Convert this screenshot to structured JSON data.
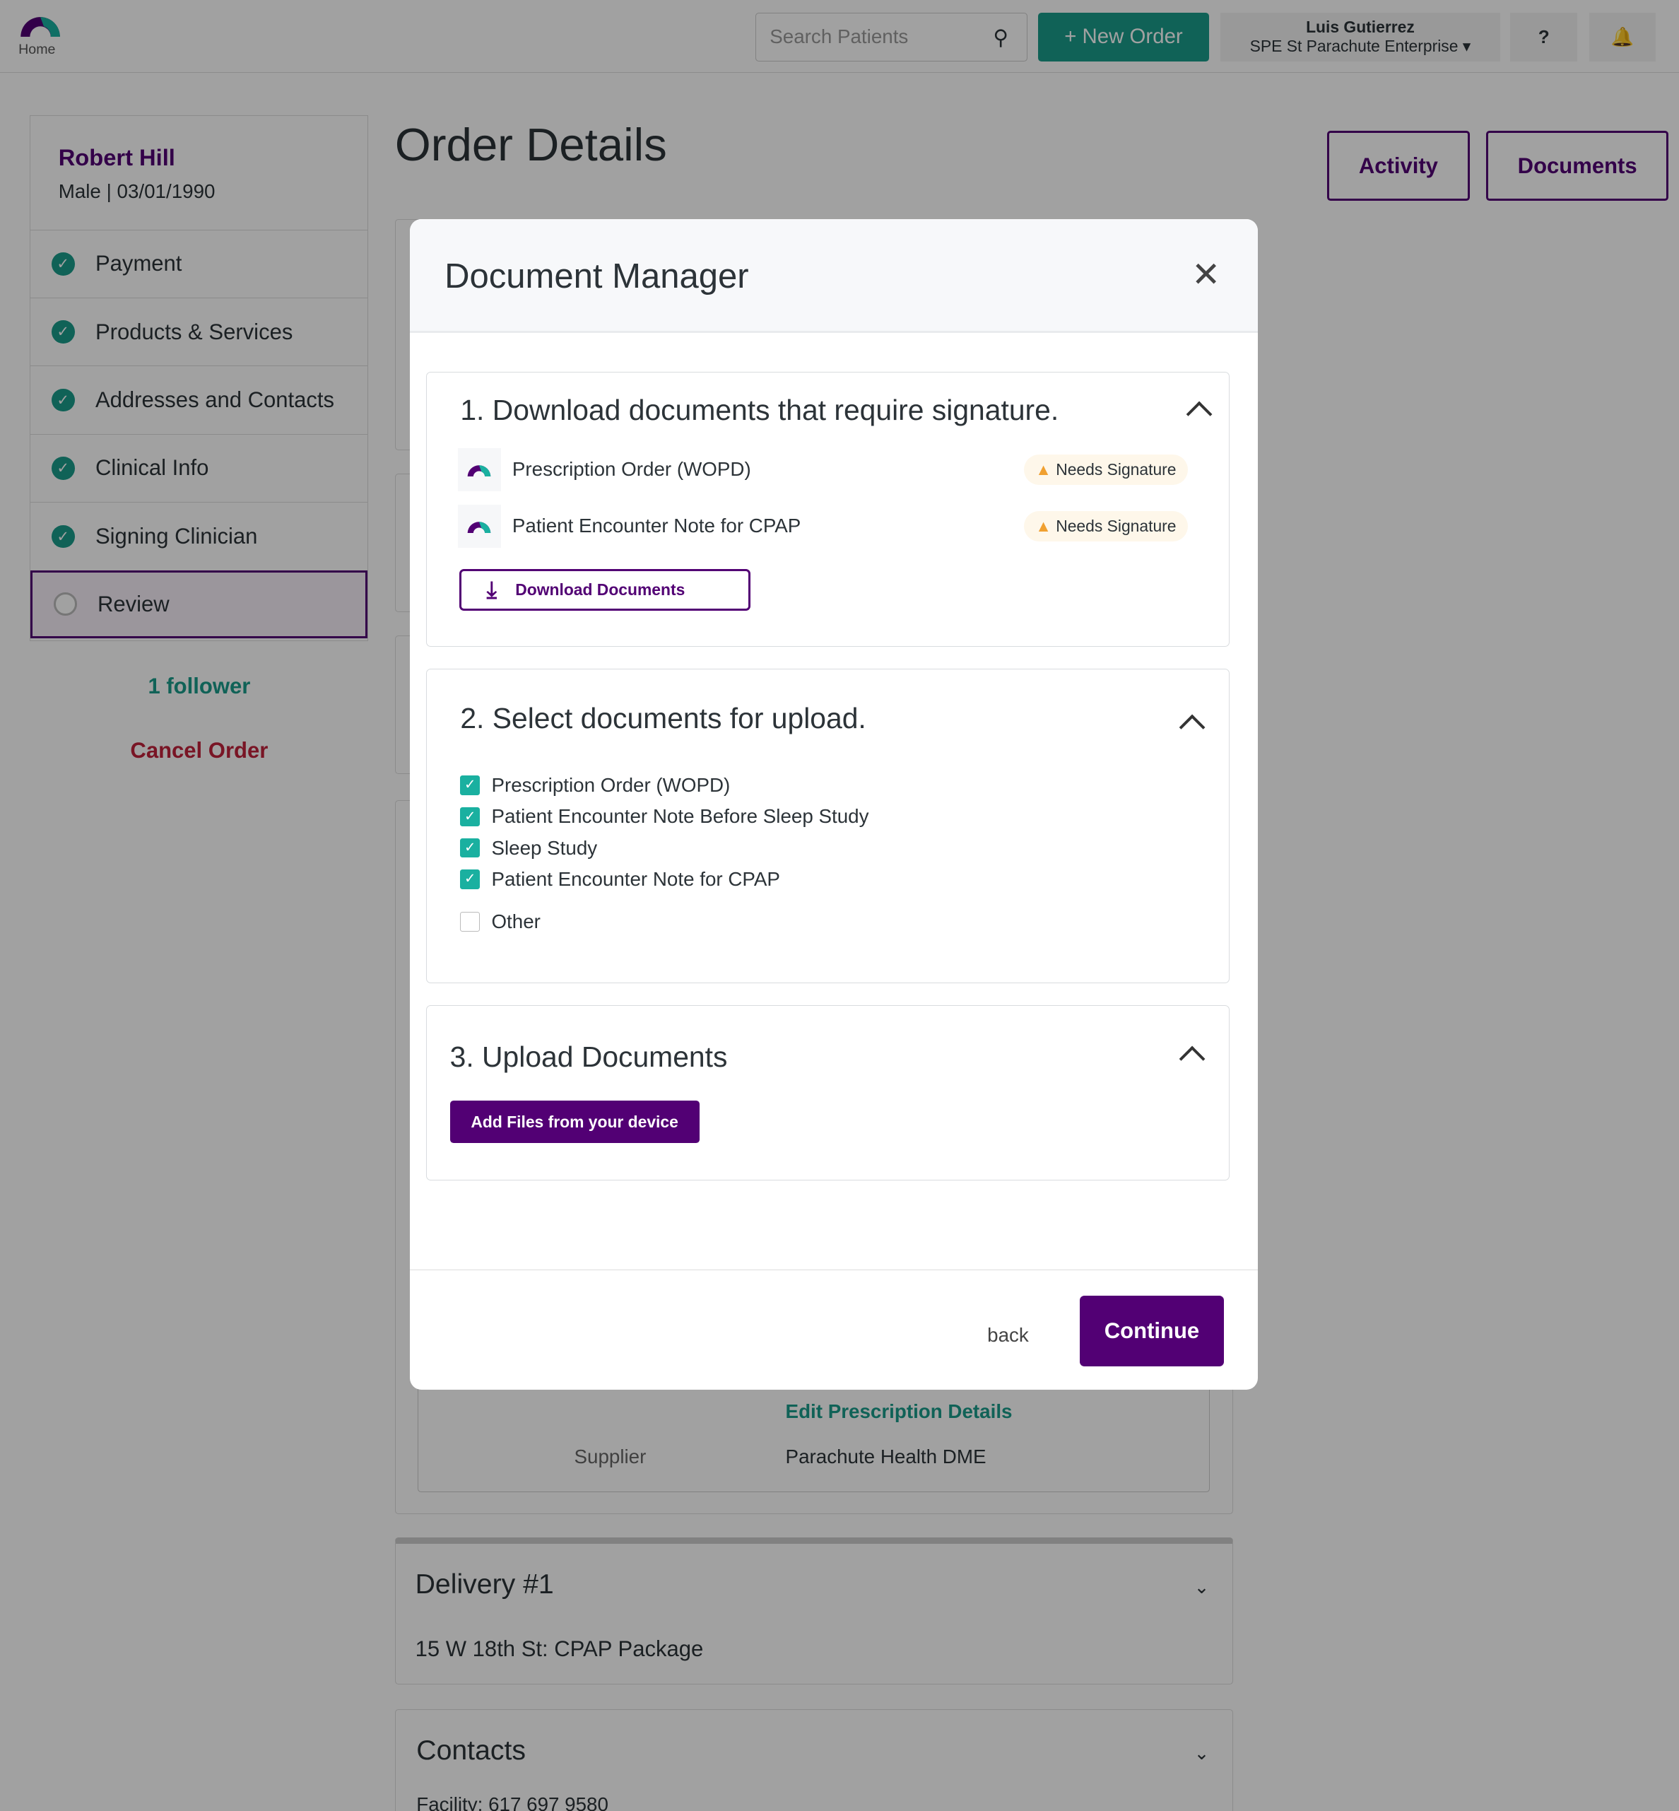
{
  "header": {
    "home_label": "Home",
    "search_placeholder": "Search Patients",
    "new_order": "+ New Order",
    "user_name": "Luis Gutierrez",
    "organization": "SPE St Parachute Enterprise",
    "help": "?"
  },
  "patient": {
    "name": "Robert Hill",
    "details": "Male | 03/01/1990"
  },
  "sidebar": {
    "items": [
      {
        "label": "Payment",
        "done": true
      },
      {
        "label": "Products & Services",
        "done": true
      },
      {
        "label": "Addresses and Contacts",
        "done": true
      },
      {
        "label": "Clinical Info",
        "done": true
      },
      {
        "label": "Signing Clinician",
        "done": true
      },
      {
        "label": "Review",
        "done": false
      }
    ],
    "followers": "1 follower",
    "cancel": "Cancel Order"
  },
  "page": {
    "title": "Order Details",
    "activity": "Activity",
    "documents": "Documents",
    "edit_rx": "Edit Prescription Details",
    "supplier_label": "Supplier",
    "supplier_value": "Parachute Health DME",
    "delivery_title": "Delivery #1",
    "delivery_desc": "15 W 18th St: CPAP Package",
    "contacts_title": "Contacts",
    "contacts_desc": "Facility: 617 697 9580"
  },
  "modal": {
    "title": "Document Manager",
    "section1": {
      "title": "1. Download documents that require signature.",
      "docs": [
        {
          "name": "Prescription Order (WOPD)",
          "status": "Needs Signature"
        },
        {
          "name": "Patient Encounter Note for CPAP",
          "status": "Needs Signature"
        }
      ],
      "button": "Download Documents"
    },
    "section2": {
      "title": "2. Select documents for upload.",
      "options": [
        {
          "label": "Prescription Order (WOPD)",
          "checked": true
        },
        {
          "label": "Patient Encounter Note Before Sleep Study",
          "checked": true
        },
        {
          "label": "Sleep Study",
          "checked": true
        },
        {
          "label": "Patient Encounter Note for CPAP",
          "checked": true
        },
        {
          "label": "Other",
          "checked": false
        }
      ]
    },
    "section3": {
      "title": "3. Upload Documents",
      "button": "Add Files from your device"
    },
    "back": "back",
    "continue": "Continue"
  },
  "colors": {
    "brand_purple": "#520074",
    "teal": "#1a9b8a",
    "danger": "#c0223b",
    "warning": "#f0a030"
  }
}
